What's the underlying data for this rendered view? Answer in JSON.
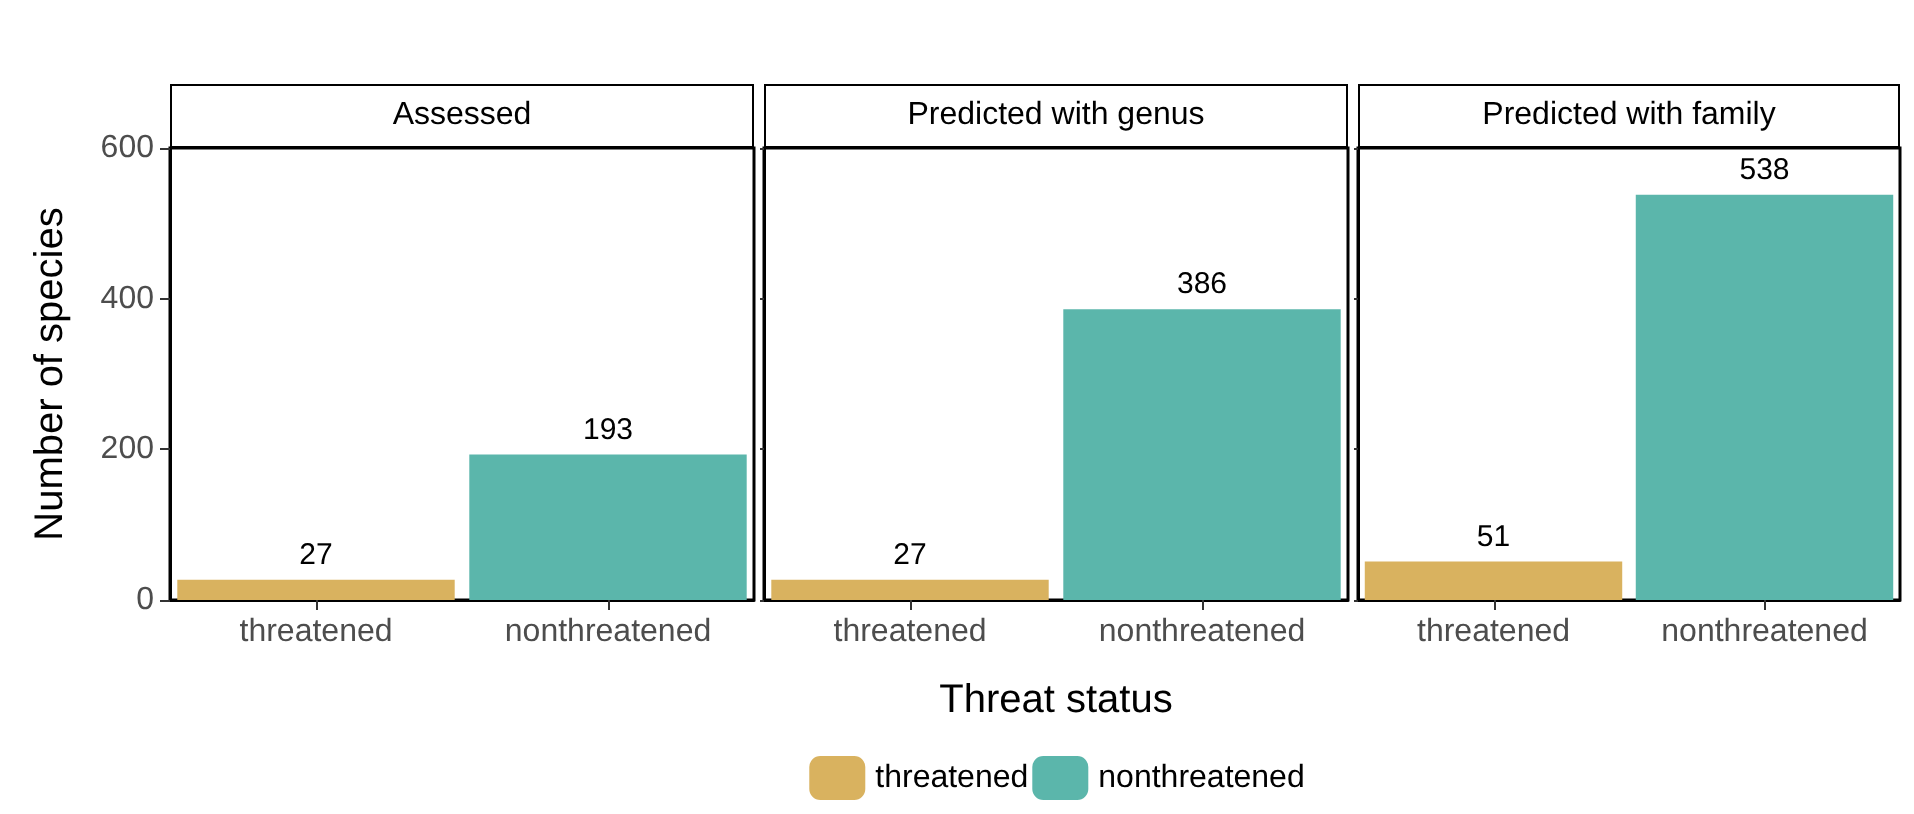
{
  "chart_data": [
    {
      "type": "bar",
      "title": "Assessed",
      "ylabel": "Number of species",
      "categories": [
        "threatened",
        "nonthreatened"
      ],
      "series": [
        {
          "color": "#d9b25f",
          "values": [
            27,
            null
          ]
        },
        {
          "color": "#5bb6ab",
          "values": [
            null,
            193
          ]
        }
      ],
      "stacked": true,
      "data_labels": true,
      "ylim": [
        0,
        600
      ],
      "yticks": [
        0,
        200,
        400,
        600
      ],
      "grid": false,
      "legend": false
    },
    {
      "type": "bar",
      "title": "Predicted with genus",
      "xlabel": "Threat status",
      "categories": [
        "threatened",
        "nonthreatened"
      ],
      "series": [
        {
          "name": "threatened",
          "color": "#d9b25f",
          "values": [
            27,
            null
          ]
        },
        {
          "name": "nonthreatened",
          "color": "#5bb6ab",
          "values": [
            null,
            386
          ]
        }
      ],
      "stacked": true,
      "data_labels": true,
      "ylim": [
        0,
        600
      ],
      "yticks": [
        0,
        200,
        400,
        600
      ],
      "tick_labels": "x",
      "grid": false,
      "legend": "bottom"
    },
    {
      "type": "bar",
      "title": "Predicted with family",
      "categories": [
        "threatened",
        "nonthreatened"
      ],
      "series": [
        {
          "color": "#d9b25f",
          "values": [
            51,
            null
          ]
        },
        {
          "color": "#5bb6ab",
          "values": [
            null,
            538
          ]
        }
      ],
      "stacked": true,
      "data_labels": true,
      "ylim": [
        0,
        600
      ],
      "yticks": [
        0,
        200,
        400,
        600
      ],
      "tick_labels": "x",
      "grid": false,
      "legend": false
    }
  ]
}
